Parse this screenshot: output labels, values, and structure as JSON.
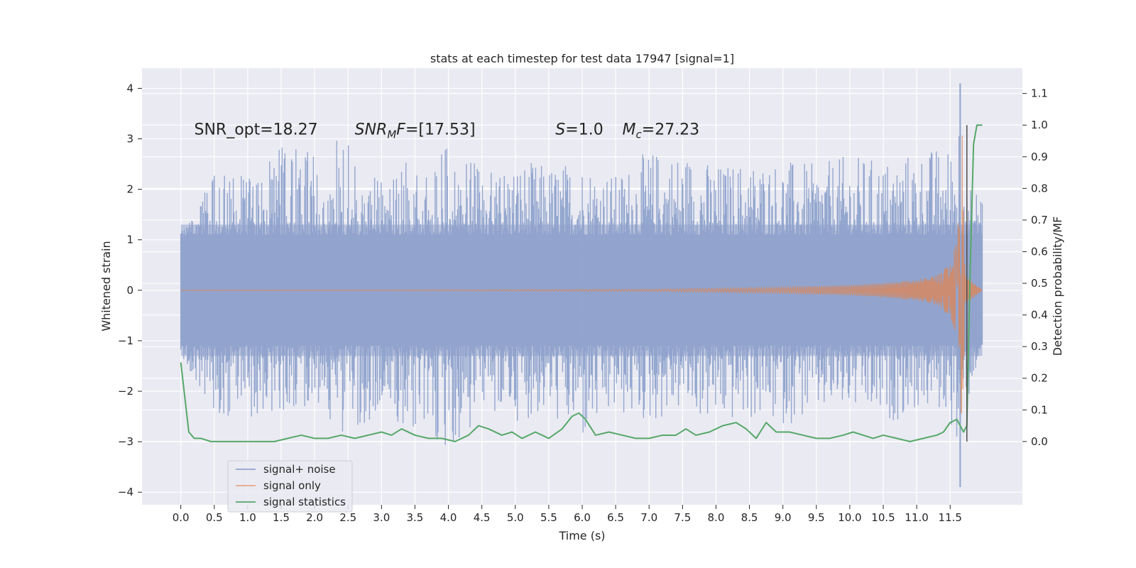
{
  "chart_data": {
    "type": "line",
    "title": "stats at each timestep for test data 17947 [signal=1]",
    "xlabel": "Time (s)",
    "ylabel": "Whitened strain",
    "ylabel_right": "Detection probability/MF",
    "xlim": [
      -0.58,
      12.58
    ],
    "ylim": [
      -4.25,
      4.4
    ],
    "ylim_right": [
      -0.2,
      1.18
    ],
    "x_ticks": [
      0.0,
      0.5,
      1.0,
      1.5,
      2.0,
      2.5,
      3.0,
      3.5,
      4.0,
      4.5,
      5.0,
      5.5,
      6.0,
      6.5,
      7.0,
      7.5,
      8.0,
      8.5,
      9.0,
      9.5,
      10.0,
      10.5,
      11.0,
      11.5
    ],
    "x_tick_labels": [
      "0.0",
      "0.5",
      "1.0",
      "1.5",
      "2.0",
      "2.5",
      "3.0",
      "3.5",
      "4.0",
      "4.5",
      "5.0",
      "5.5",
      "6.0",
      "6.5",
      "7.0",
      "7.5",
      "8.0",
      "8.5",
      "9.0",
      "9.5",
      "10.0",
      "10.5",
      "11.0",
      "11.5"
    ],
    "y_ticks": [
      -4,
      -3,
      -2,
      -1,
      0,
      1,
      2,
      3,
      4
    ],
    "y_tick_labels": [
      "−4",
      "−3",
      "−2",
      "−1",
      "0",
      "1",
      "2",
      "3",
      "4"
    ],
    "y_right_ticks": [
      0.0,
      0.1,
      0.2,
      0.3,
      0.4,
      0.5,
      0.6,
      0.7,
      0.8,
      0.9,
      1.0,
      1.1
    ],
    "y_right_tick_labels": [
      "0.0",
      "0.1",
      "0.2",
      "0.3",
      "0.4",
      "0.5",
      "0.6",
      "0.7",
      "0.8",
      "0.9",
      "1.0",
      "1.1"
    ],
    "annotations": [
      {
        "text": "SNR_opt=18.27",
        "x": 0.2,
        "y": 3.2
      },
      {
        "text": "SNR_MF=[17.53]",
        "x": 2.6,
        "y": 3.2
      },
      {
        "text": "S=1.0",
        "x": 5.6,
        "y": 3.2
      },
      {
        "text": "M_c=27.23",
        "x": 6.6,
        "y": 3.2
      }
    ],
    "grid": true,
    "legend_position": "lower-left",
    "series": [
      {
        "name": "signal+ noise",
        "axis": "left",
        "color": "#8fa3cc",
        "description_values": "noise band approx ±1.3 core, peaks up to ±3, spike at 11.65 s",
        "x": [
          0.0,
          0.5,
          1.0,
          1.5,
          2.0,
          2.5,
          3.0,
          3.5,
          4.0,
          4.5,
          5.0,
          5.5,
          6.0,
          6.5,
          7.0,
          7.5,
          8.0,
          8.5,
          9.0,
          9.5,
          10.0,
          10.5,
          11.0,
          11.5,
          11.65,
          11.75,
          11.98
        ],
        "upper": [
          1.3,
          2.3,
          2.3,
          2.9,
          2.7,
          3.1,
          2.5,
          2.7,
          2.9,
          2.4,
          2.6,
          2.5,
          2.6,
          2.3,
          2.8,
          2.8,
          2.5,
          2.6,
          2.6,
          2.5,
          2.7,
          2.6,
          2.8,
          2.9,
          4.1,
          2.0,
          2.1
        ],
        "lower": [
          -1.3,
          -2.5,
          -2.9,
          -2.4,
          -2.3,
          -2.9,
          -2.5,
          -2.8,
          -3.4,
          -2.5,
          -2.6,
          -2.5,
          -3.1,
          -2.5,
          -2.7,
          -2.4,
          -2.7,
          -2.6,
          -2.7,
          -2.5,
          -2.4,
          -2.7,
          -2.4,
          -2.5,
          -3.9,
          -2.4,
          -1.0
        ]
      },
      {
        "name": "signal only",
        "axis": "left",
        "color": "#dd8452",
        "x": [
          0.0,
          7.0,
          8.0,
          9.0,
          10.0,
          10.5,
          11.0,
          11.3,
          11.5,
          11.6,
          11.65,
          11.68,
          11.72,
          11.98
        ],
        "amplitude": [
          0.0,
          0.02,
          0.04,
          0.06,
          0.1,
          0.14,
          0.2,
          0.3,
          0.5,
          1.0,
          1.9,
          3.1,
          0.3,
          0.0
        ]
      },
      {
        "name": "signal statistics",
        "axis": "right",
        "color": "#55a868",
        "x": [
          0.0,
          0.12,
          0.2,
          0.3,
          0.45,
          0.6,
          0.8,
          1.0,
          1.2,
          1.4,
          1.6,
          1.8,
          2.0,
          2.2,
          2.4,
          2.6,
          2.8,
          3.0,
          3.15,
          3.3,
          3.5,
          3.7,
          3.9,
          4.1,
          4.3,
          4.45,
          4.6,
          4.8,
          4.95,
          5.1,
          5.3,
          5.5,
          5.7,
          5.85,
          5.95,
          6.05,
          6.2,
          6.4,
          6.6,
          6.8,
          7.0,
          7.2,
          7.4,
          7.55,
          7.7,
          7.9,
          8.1,
          8.3,
          8.45,
          8.6,
          8.75,
          8.9,
          9.1,
          9.3,
          9.5,
          9.7,
          9.9,
          10.05,
          10.2,
          10.35,
          10.5,
          10.7,
          10.9,
          11.1,
          11.3,
          11.4,
          11.5,
          11.6,
          11.7,
          11.75,
          11.8,
          11.85,
          11.9,
          11.98
        ],
        "values": [
          0.25,
          0.03,
          0.01,
          0.01,
          0.0,
          0.0,
          0.0,
          0.0,
          0.0,
          0.0,
          0.01,
          0.02,
          0.01,
          0.01,
          0.02,
          0.01,
          0.02,
          0.03,
          0.02,
          0.04,
          0.02,
          0.01,
          0.01,
          0.0,
          0.02,
          0.05,
          0.04,
          0.02,
          0.03,
          0.01,
          0.03,
          0.01,
          0.04,
          0.08,
          0.09,
          0.07,
          0.02,
          0.03,
          0.02,
          0.01,
          0.01,
          0.02,
          0.02,
          0.04,
          0.02,
          0.03,
          0.05,
          0.06,
          0.04,
          0.01,
          0.06,
          0.03,
          0.03,
          0.02,
          0.01,
          0.01,
          0.02,
          0.03,
          0.02,
          0.01,
          0.02,
          0.01,
          0.0,
          0.01,
          0.02,
          0.03,
          0.06,
          0.07,
          0.03,
          0.05,
          0.55,
          0.94,
          1.0,
          1.0
        ]
      }
    ],
    "vertical_marker_x": 11.75
  }
}
